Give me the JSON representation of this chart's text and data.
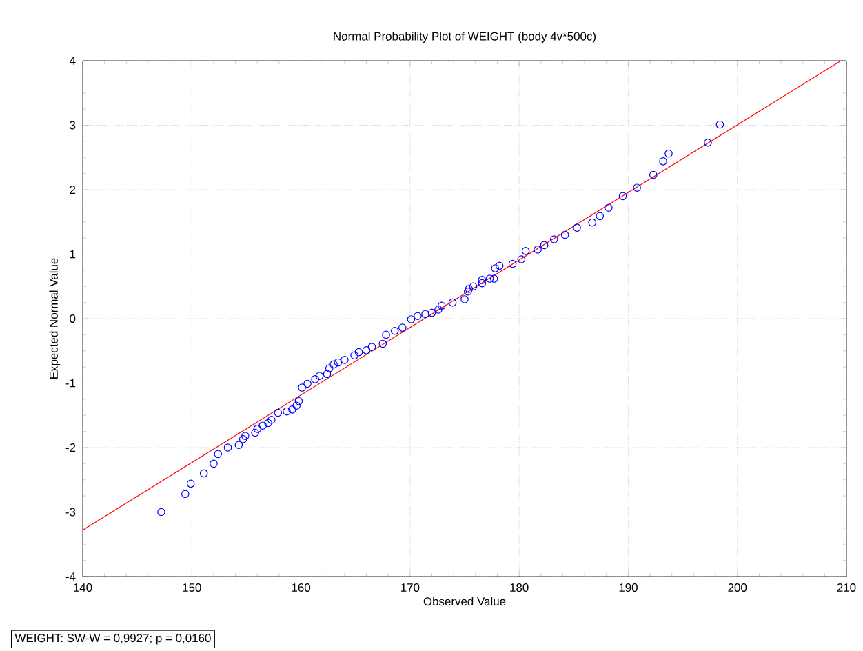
{
  "chart_data": {
    "type": "scatter",
    "title": "Normal Probability Plot of WEIGHT (body 4v*500c)",
    "xlabel": "Observed Value",
    "ylabel": "Expected Normal Value",
    "annotations": [
      "WEIGHT:  SW-W = 0,9927; p = 0,0160"
    ],
    "xlim": [
      140,
      210
    ],
    "ylim": [
      -4,
      4
    ],
    "xticks": [
      140,
      150,
      160,
      170,
      180,
      190,
      200,
      210
    ],
    "yticks": [
      -4,
      -3,
      -2,
      -1,
      0,
      1,
      2,
      3,
      4
    ],
    "grid": true,
    "series": [
      {
        "color": "#0000ff",
        "marker": "circle",
        "x": [
          147.2,
          149.4,
          149.9,
          151.1,
          152.0,
          152.4,
          153.3,
          154.3,
          154.7,
          154.9,
          155.8,
          156.0,
          156.5,
          157.0,
          157.3,
          157.9,
          158.7,
          159.2,
          159.6,
          159.8,
          160.1,
          160.6,
          161.3,
          161.7,
          162.4,
          162.6,
          163.0,
          163.4,
          164.0,
          164.9,
          165.3,
          166.0,
          166.5,
          167.5,
          167.8,
          168.6,
          169.3,
          170.1,
          170.7,
          171.4,
          172.0,
          172.6,
          172.9,
          173.9,
          175.0,
          175.3,
          175.4,
          175.8,
          176.6,
          176.6,
          177.3,
          177.7,
          177.8,
          178.2,
          179.4,
          180.2,
          180.6,
          181.7,
          182.3,
          183.2,
          184.2,
          185.3,
          186.7,
          187.4,
          188.2,
          189.5,
          190.8,
          192.3,
          193.2,
          193.7,
          197.3,
          198.4
        ],
        "values": [
          -3.0,
          -2.72,
          -2.56,
          -2.4,
          -2.25,
          -2.1,
          -2.0,
          -1.96,
          -1.87,
          -1.82,
          -1.77,
          -1.71,
          -1.66,
          -1.62,
          -1.57,
          -1.46,
          -1.44,
          -1.41,
          -1.35,
          -1.28,
          -1.07,
          -1.01,
          -0.94,
          -0.89,
          -0.86,
          -0.77,
          -0.71,
          -0.68,
          -0.64,
          -0.57,
          -0.52,
          -0.49,
          -0.44,
          -0.39,
          -0.25,
          -0.19,
          -0.14,
          -0.01,
          0.04,
          0.07,
          0.09,
          0.14,
          0.2,
          0.25,
          0.3,
          0.42,
          0.46,
          0.5,
          0.55,
          0.6,
          0.62,
          0.62,
          0.78,
          0.82,
          0.85,
          0.92,
          1.05,
          1.07,
          1.14,
          1.23,
          1.3,
          1.41,
          1.49,
          1.59,
          1.72,
          1.9,
          2.03,
          2.23,
          2.44,
          2.56,
          2.73,
          3.01
        ]
      },
      {
        "type": "line",
        "color": "#ff0000",
        "marker": "none",
        "line_style": "solid",
        "x": [
          140,
          209.5
        ],
        "values": [
          -3.28,
          4
        ]
      }
    ]
  }
}
